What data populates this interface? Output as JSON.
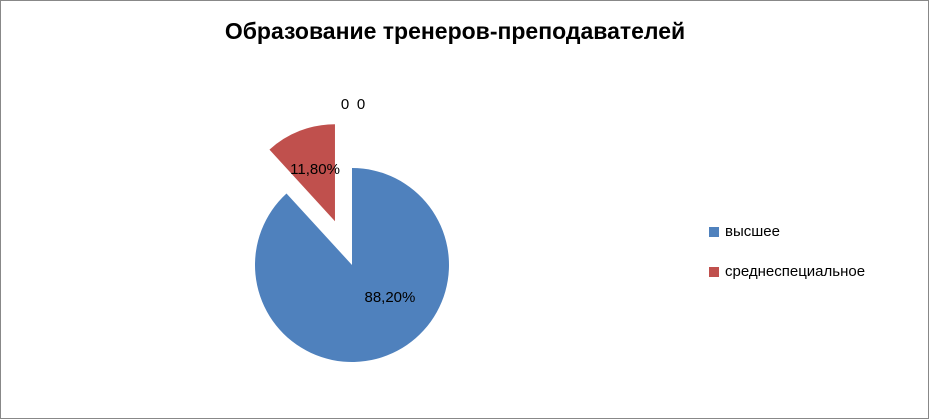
{
  "chart_data": {
    "type": "pie",
    "title": "Образование тренеров-преподавателей",
    "categories": [
      "высшее",
      "среднеспециальное",
      null,
      null
    ],
    "values": [
      88.2,
      11.8,
      0,
      0
    ],
    "value_labels": [
      "88,20%",
      "11,80%",
      "0",
      "0"
    ],
    "colors": [
      "#4f81bd",
      "#c0504d",
      "#9bbb59",
      "#8064a2"
    ],
    "exploded": [
      false,
      true,
      false,
      false
    ],
    "legend": "right"
  }
}
